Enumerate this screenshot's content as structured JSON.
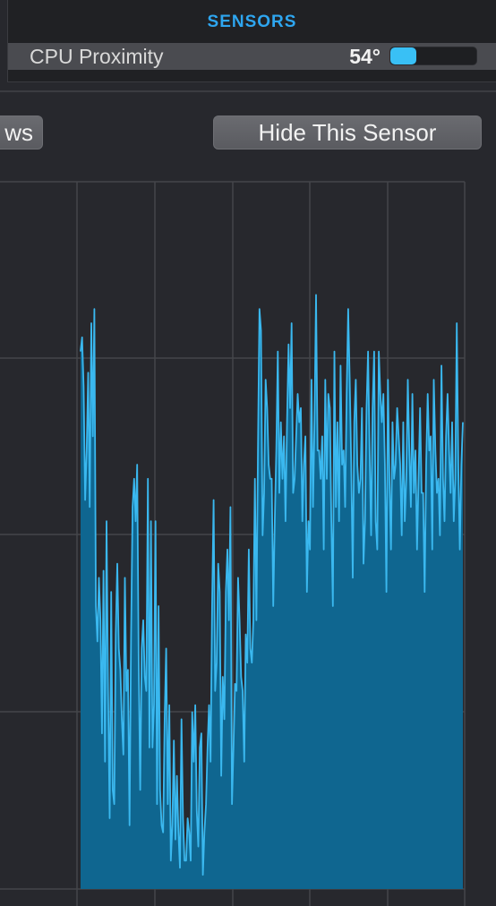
{
  "sensors_panel": {
    "header": "SENSORS",
    "row": {
      "name": "CPU Proximity",
      "value": "54°",
      "level_fraction": 0.3
    }
  },
  "buttons": {
    "left_partial_label": "ws",
    "hide_sensor_label": "Hide This Sensor"
  },
  "colors": {
    "accent": "#2ea6f0",
    "series_line": "#3ab8ef",
    "series_fill": "#0f6690",
    "grid": "#45464b",
    "background": "#27282d"
  },
  "chart_data": {
    "type": "area",
    "title": "",
    "xlabel": "",
    "ylabel": "",
    "grid": true,
    "ylim": [
      0,
      100
    ],
    "series": [
      {
        "values": [
          76,
          78,
          71,
          55,
          62,
          73,
          54,
          80,
          64,
          82,
          40,
          35,
          44,
          38,
          22,
          45,
          18,
          52,
          28,
          10,
          42,
          14,
          12,
          36,
          46,
          34,
          31,
          24,
          19,
          44,
          28,
          31,
          9,
          36,
          54,
          58,
          52,
          60,
          32,
          14,
          34,
          38,
          30,
          28,
          58,
          20,
          52,
          20,
          26,
          52,
          12,
          40,
          14,
          9,
          8,
          24,
          34,
          12,
          26,
          4,
          9,
          21,
          7,
          16,
          8,
          3,
          24,
          10,
          4,
          4,
          10,
          8,
          4,
          25,
          18,
          26,
          11,
          6,
          20,
          22,
          2,
          8,
          12,
          20,
          26,
          18,
          40,
          55,
          28,
          32,
          46,
          42,
          16,
          30,
          24,
          42,
          48,
          38,
          54,
          12,
          20,
          29,
          28,
          44,
          38,
          30,
          28,
          18,
          36,
          32,
          48,
          34,
          32,
          38,
          58,
          38,
          62,
          82,
          79,
          50,
          56,
          72,
          68,
          60,
          58,
          58,
          40,
          52,
          62,
          76,
          56,
          66,
          58,
          64,
          52,
          66,
          77,
          68,
          80,
          56,
          58,
          64,
          70,
          66,
          68,
          52,
          60,
          64,
          42,
          52,
          48,
          72,
          54,
          66,
          84,
          62,
          62,
          58,
          64,
          48,
          72,
          58,
          70,
          68,
          52,
          40,
          76,
          54,
          66,
          52,
          74,
          60,
          62,
          54,
          70,
          82,
          72,
          60,
          44,
          66,
          72,
          60,
          56,
          58,
          68,
          46,
          52,
          68,
          76,
          62,
          50,
          68,
          76,
          52,
          48,
          76,
          70,
          66,
          70,
          60,
          42,
          72,
          58,
          48,
          66,
          58,
          60,
          68,
          64,
          60,
          50,
          66,
          52,
          58,
          72,
          62,
          54,
          70,
          56,
          62,
          48,
          58,
          68,
          56,
          56,
          42,
          60,
          70,
          62,
          64,
          48,
          72,
          62,
          56,
          58,
          50,
          74,
          58,
          52,
          64,
          70,
          62,
          56,
          66,
          52,
          58,
          80,
          60,
          48,
          60,
          66
        ]
      }
    ]
  }
}
